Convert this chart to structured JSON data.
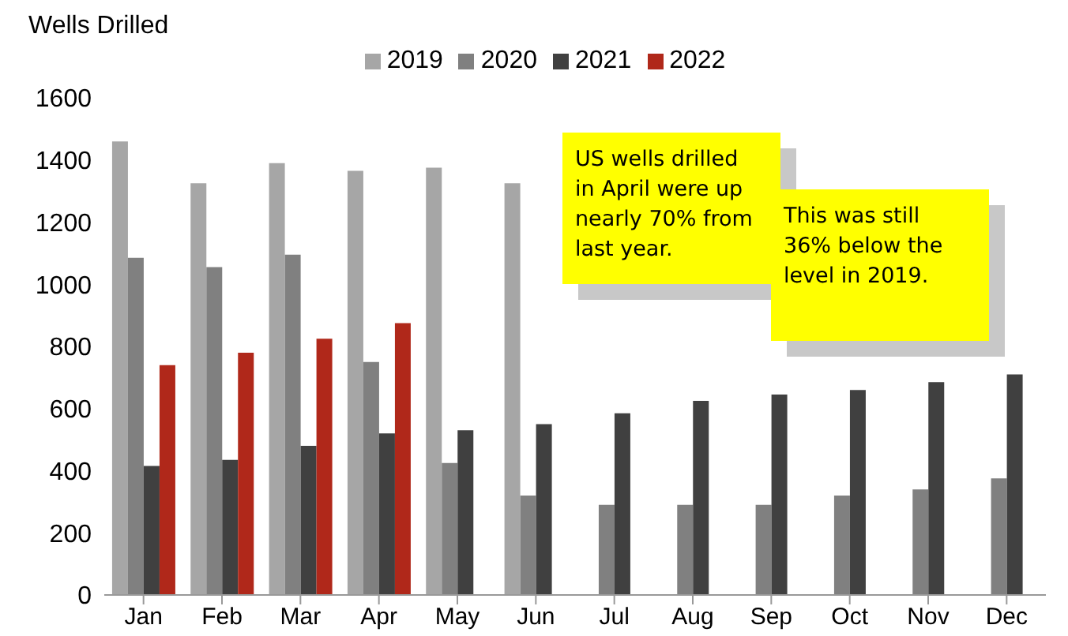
{
  "chart_data": {
    "type": "bar",
    "ylabel": "Wells Drilled",
    "categories": [
      "Jan",
      "Feb",
      "Mar",
      "Apr",
      "May",
      "Jun",
      "Jul",
      "Aug",
      "Sep",
      "Oct",
      "Nov",
      "Dec"
    ],
    "series": [
      {
        "name": "2019",
        "color": "#a6a6a6",
        "values": [
          1460,
          1325,
          1390,
          1365,
          1375,
          1325,
          null,
          null,
          null,
          null,
          null,
          null
        ]
      },
      {
        "name": "2020",
        "color": "#808080",
        "values": [
          1085,
          1055,
          1095,
          750,
          425,
          320,
          290,
          290,
          290,
          320,
          340,
          375
        ]
      },
      {
        "name": "2021",
        "color": "#404040",
        "values": [
          415,
          435,
          480,
          520,
          530,
          550,
          585,
          625,
          645,
          660,
          685,
          710
        ]
      },
      {
        "name": "2022",
        "color": "#b0281a",
        "values": [
          740,
          780,
          825,
          875,
          null,
          null,
          null,
          null,
          null,
          null,
          null,
          null
        ]
      }
    ],
    "ylim": [
      0,
      1600
    ],
    "yticks": [
      0,
      200,
      400,
      600,
      800,
      1000,
      1200,
      1400,
      1600
    ],
    "grid": false,
    "legend": "top",
    "annotations": [
      "US wells drilled in April were up nearly 70% from last year.",
      "This was still 36% below the level in 2019."
    ]
  }
}
